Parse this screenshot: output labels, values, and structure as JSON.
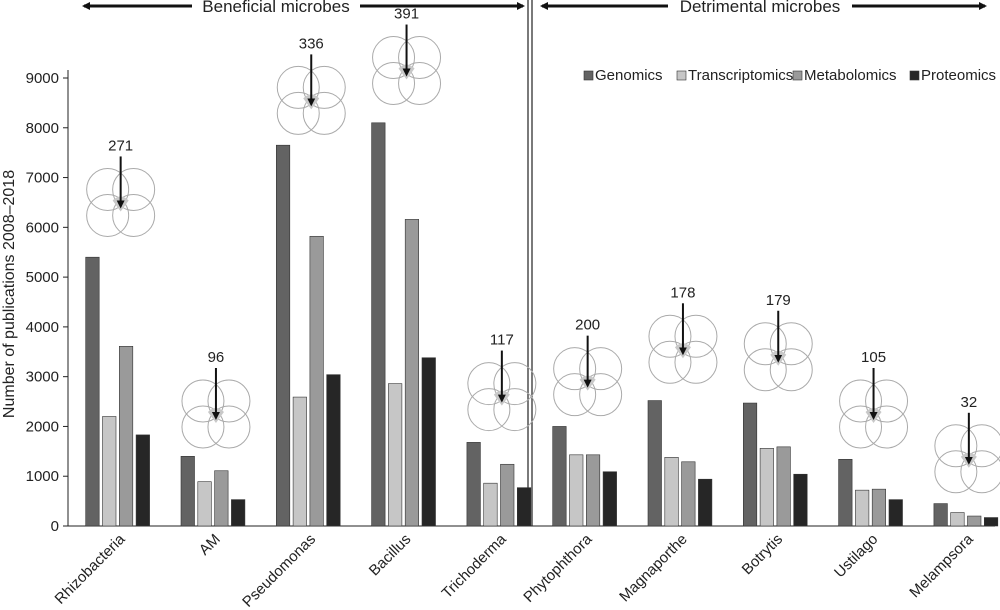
{
  "chart_data": {
    "type": "bar",
    "ylabel": "Number of publications 2008–2018",
    "xlabel": "",
    "ylim": [
      0,
      9000
    ],
    "yticks": [
      0,
      1000,
      2000,
      3000,
      4000,
      5000,
      6000,
      7000,
      8000,
      9000
    ],
    "ytick_labels": [
      "0",
      "1000",
      "2000",
      "3000",
      "4000",
      "5000",
      "6000",
      "7000",
      "8000",
      "9000"
    ],
    "grid": false,
    "legend_position": "top-right",
    "groups": [
      {
        "label": "Beneficial microbes",
        "categories": [
          "Rhizobacteria",
          "AM",
          "Pseudomonas",
          "Bacillus",
          "Trichoderma"
        ]
      },
      {
        "label": "Detrimental microbes",
        "categories": [
          "Phytophthora",
          "Magnaporthe",
          "Botrytis",
          "Ustilago",
          "Melampsora"
        ]
      }
    ],
    "categories": [
      "Rhizobacteria",
      "AM",
      "Pseudomonas",
      "Bacillus",
      "Trichoderma",
      "Phytophthora",
      "Magnaporthe",
      "Botrytis",
      "Ustilago",
      "Melampsora"
    ],
    "series": [
      {
        "name": "Genomics",
        "color": "#636363",
        "values": [
          5400,
          1400,
          7650,
          8100,
          1680,
          2000,
          2520,
          2470,
          1340,
          450
        ]
      },
      {
        "name": "Transcriptomics",
        "color": "#c6c6c6",
        "values": [
          2200,
          890,
          2590,
          2860,
          860,
          1430,
          1380,
          1560,
          720,
          270
        ]
      },
      {
        "name": "Metabolomics",
        "color": "#9a9a9a",
        "values": [
          3610,
          1110,
          5820,
          6160,
          1240,
          1430,
          1290,
          1590,
          740,
          200
        ]
      },
      {
        "name": "Proteomics",
        "color": "#262626",
        "values": [
          1830,
          530,
          3040,
          3380,
          770,
          1090,
          940,
          1040,
          530,
          170
        ]
      }
    ],
    "annotations": [
      {
        "category": "Rhizobacteria",
        "label": "271",
        "y": 6500
      },
      {
        "category": "AM",
        "label": "96",
        "y": 2250
      },
      {
        "category": "Pseudomonas",
        "label": "336",
        "y": 8550
      },
      {
        "category": "Bacillus",
        "label": "391",
        "y": 9150
      },
      {
        "category": "Trichoderma",
        "label": "117",
        "y": 2600
      },
      {
        "category": "Phytophthora",
        "label": "200",
        "y": 2900
      },
      {
        "category": "Magnaporthe",
        "label": "178",
        "y": 3550
      },
      {
        "category": "Botrytis",
        "label": "179",
        "y": 3400
      },
      {
        "category": "Ustilago",
        "label": "105",
        "y": 2250
      },
      {
        "category": "Melampsora",
        "label": "32",
        "y": 1350
      }
    ]
  }
}
